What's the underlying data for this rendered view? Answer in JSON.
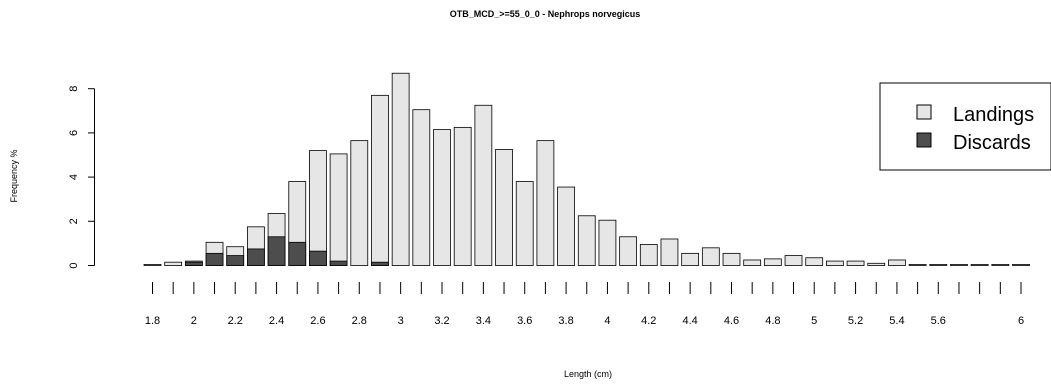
{
  "chart_data": {
    "type": "bar",
    "title": "OTB_MCD_>=55_0_0 - Nephrops norvegicus",
    "xlabel": "Length (cm)",
    "ylabel": "Frequency %",
    "stacked": false,
    "x": [
      1.8,
      1.9,
      2.0,
      2.1,
      2.2,
      2.3,
      2.4,
      2.5,
      2.6,
      2.7,
      2.8,
      2.9,
      3.0,
      3.1,
      3.2,
      3.3,
      3.4,
      3.5,
      3.6,
      3.7,
      3.8,
      3.9,
      4.0,
      4.1,
      4.2,
      4.3,
      4.4,
      4.5,
      4.6,
      4.7,
      4.8,
      4.9,
      5.0,
      5.1,
      5.2,
      5.3,
      5.4,
      5.5,
      5.6,
      5.7,
      5.8,
      5.9,
      6.0
    ],
    "series": [
      {
        "name": "Landings",
        "color": "#e6e6e6",
        "values": [
          0.05,
          0.15,
          0.2,
          1.05,
          0.85,
          1.75,
          2.35,
          3.8,
          5.2,
          5.05,
          5.65,
          7.7,
          8.7,
          7.05,
          6.15,
          6.25,
          7.25,
          5.25,
          3.8,
          5.65,
          3.55,
          2.25,
          2.05,
          1.3,
          0.95,
          1.2,
          0.55,
          0.8,
          0.55,
          0.25,
          0.3,
          0.45,
          0.35,
          0.2,
          0.2,
          0.1,
          0.25,
          0.05,
          0.05,
          0.05,
          0.05,
          0.05,
          0.05
        ]
      },
      {
        "name": "Discards",
        "color": "#4d4d4d",
        "values": [
          0.0,
          0.0,
          0.15,
          0.55,
          0.45,
          0.75,
          1.3,
          1.05,
          0.65,
          0.2,
          0.0,
          0.15,
          0.0,
          0.0,
          0.0,
          0.0,
          0.0,
          0.0,
          0.0,
          0.0,
          0.0,
          0.0,
          0.0,
          0.0,
          0.0,
          0.0,
          0.0,
          0.0,
          0.0,
          0.0,
          0.0,
          0.0,
          0.0,
          0.0,
          0.0,
          0.0,
          0.0,
          0.0,
          0.0,
          0.0,
          0.0,
          0.0,
          0.0
        ]
      }
    ],
    "xticks": [
      "1.8",
      "2",
      "2.2",
      "2.4",
      "2.6",
      "2.8",
      "3",
      "3.2",
      "3.4",
      "3.6",
      "3.8",
      "4",
      "4.2",
      "4.4",
      "4.6",
      "4.8",
      "5",
      "5.2",
      "5.4",
      "5.6",
      "6"
    ],
    "yticks": [
      "0",
      "2",
      "4",
      "6",
      "8"
    ],
    "ylim": [
      0,
      9
    ],
    "grid": false,
    "legend_position": "right"
  }
}
